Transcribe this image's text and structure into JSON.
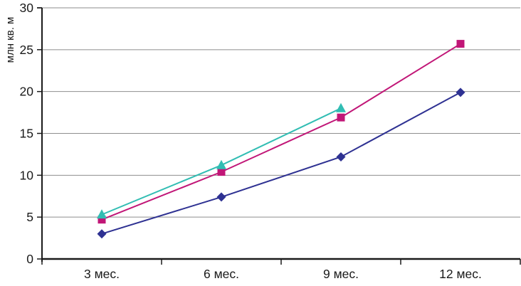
{
  "chart_data": {
    "type": "line",
    "title": "",
    "ylabel": "млн кв. м",
    "xlabel": "",
    "categories": [
      "3 мес.",
      "6 мес.",
      "9 мес.",
      "12 мес."
    ],
    "series": [
      {
        "name": "navy-diamond-series",
        "marker": "diamond",
        "color": "#2e3192",
        "values": [
          3.0,
          7.4,
          12.2,
          19.9
        ]
      },
      {
        "name": "magenta-square-series",
        "marker": "square",
        "color": "#c11677",
        "values": [
          4.7,
          10.4,
          16.9,
          25.7
        ]
      },
      {
        "name": "teal-triangle-series",
        "marker": "triangle",
        "color": "#31bdb3",
        "values": [
          5.3,
          11.2,
          18.0,
          null
        ]
      }
    ],
    "ylim": [
      0,
      30
    ],
    "yticks": [
      0,
      5,
      10,
      15,
      20,
      25,
      30
    ],
    "grid": true,
    "legend": "none",
    "colors": {
      "axis": "#1a1a1a",
      "gridline": "#8e8e8e",
      "text": "#1a1a1a",
      "background": "#ffffff"
    }
  }
}
